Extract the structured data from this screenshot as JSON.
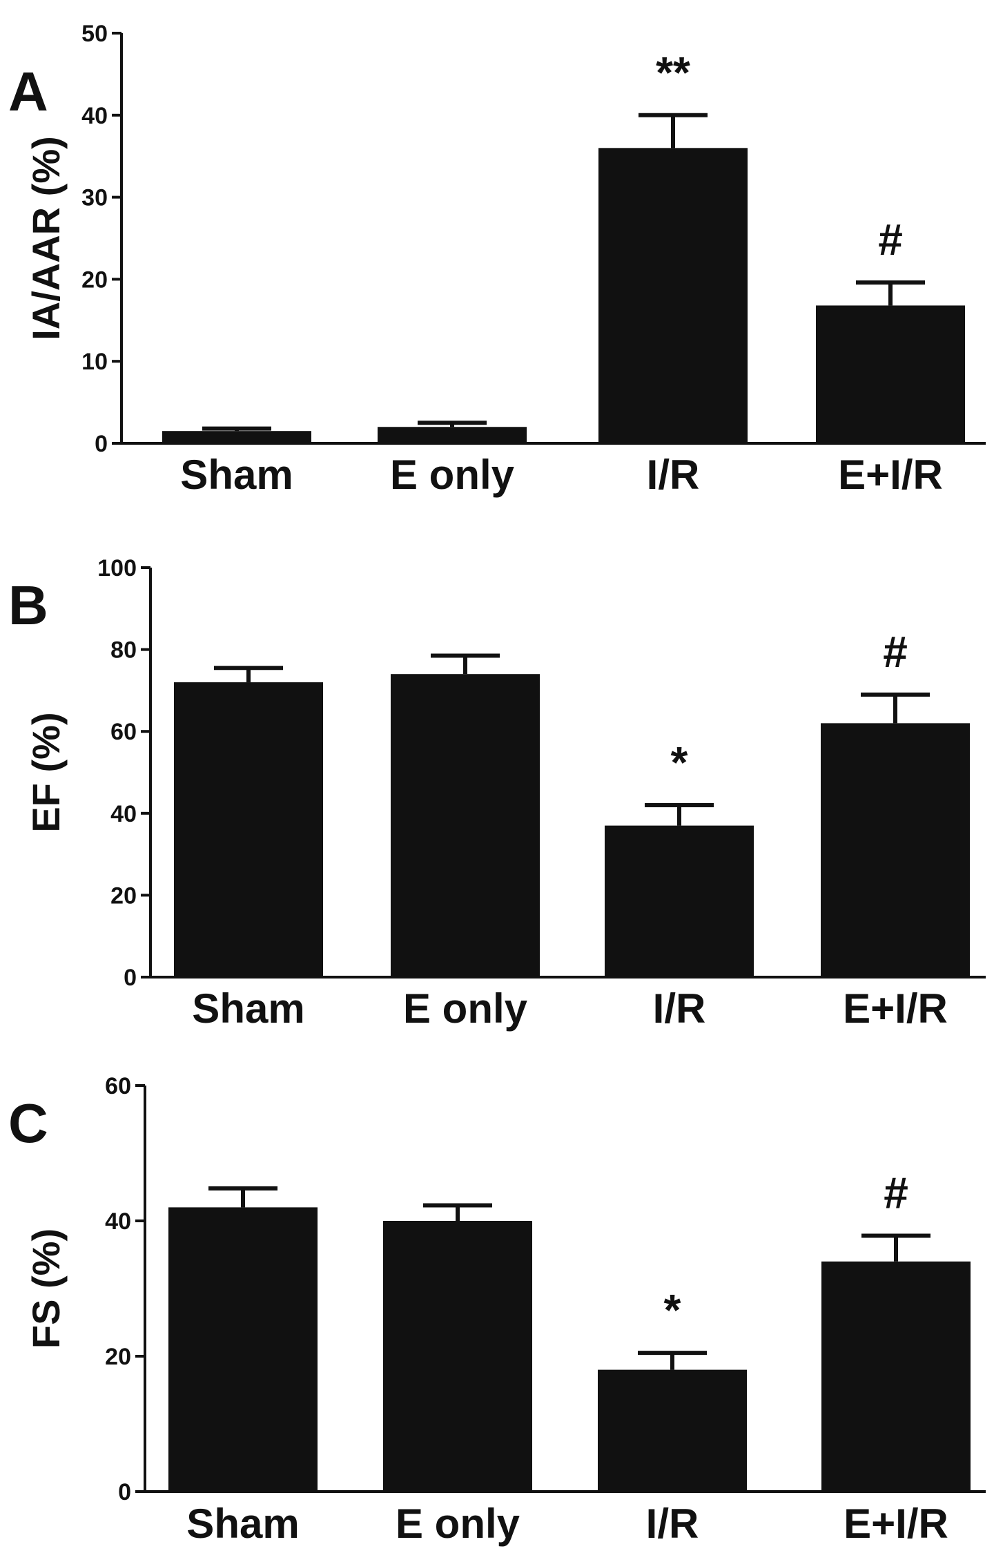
{
  "chart_data": [
    {
      "type": "bar",
      "panel": "A",
      "ylabel": "IA/AAR (%)",
      "categories": [
        "Sham",
        "E only",
        "I/R",
        "E+I/R"
      ],
      "values": [
        1.5,
        2.0,
        36.0,
        16.8
      ],
      "errors": [
        0.3,
        0.5,
        4.0,
        2.8
      ],
      "annotations": [
        "",
        "",
        "**",
        "#"
      ],
      "ylim": [
        0,
        50
      ],
      "yticks": [
        0,
        10,
        20,
        30,
        40,
        50
      ]
    },
    {
      "type": "bar",
      "panel": "B",
      "ylabel": "EF (%)",
      "categories": [
        "Sham",
        "E only",
        "I/R",
        "E+I/R"
      ],
      "values": [
        72,
        74,
        37,
        62
      ],
      "errors": [
        3.5,
        4.5,
        5.0,
        7.0
      ],
      "annotations": [
        "",
        "",
        "*",
        "#"
      ],
      "ylim": [
        0,
        100
      ],
      "yticks": [
        0,
        20,
        40,
        60,
        80,
        100
      ]
    },
    {
      "type": "bar",
      "panel": "C",
      "ylabel": "FS (%)",
      "categories": [
        "Sham",
        "E only",
        "I/R",
        "E+I/R"
      ],
      "values": [
        42,
        40,
        18,
        34
      ],
      "errors": [
        2.8,
        2.3,
        2.5,
        3.8
      ],
      "annotations": [
        "",
        "",
        "*",
        "#"
      ],
      "ylim": [
        0,
        60
      ],
      "yticks": [
        0,
        20,
        40,
        60
      ]
    }
  ]
}
